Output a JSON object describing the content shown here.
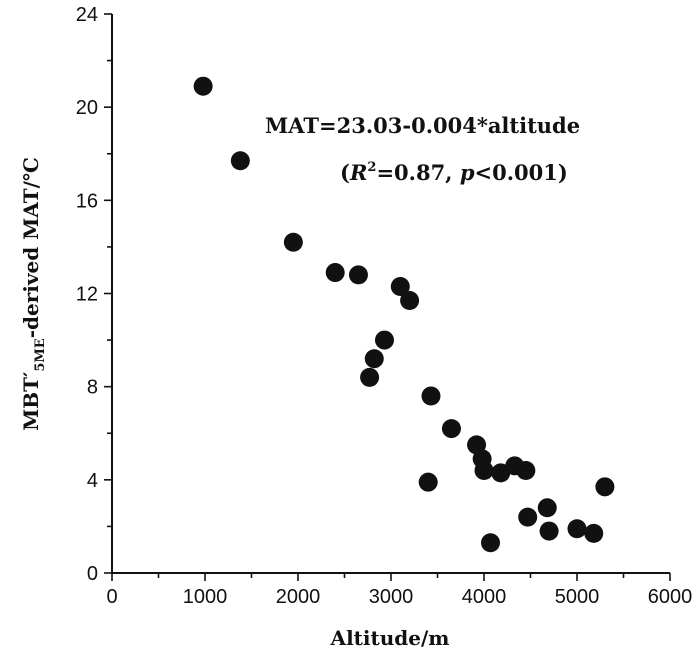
{
  "chart_data": {
    "type": "scatter",
    "xlabel": "Altitude/m",
    "ylabel": {
      "main": "MBT′",
      "sub": "5ME",
      "rest": "-derived MAT/℃"
    },
    "xlim": [
      0,
      6000
    ],
    "ylim": [
      0,
      24
    ],
    "xticks": [
      0,
      1000,
      2000,
      3000,
      4000,
      5000,
      6000
    ],
    "yticks": [
      0,
      4,
      8,
      12,
      16,
      20,
      24
    ],
    "grid": false,
    "annotations": {
      "equation": "MAT=23.03-0.004*altitude",
      "stats_open": "(",
      "r_symbol": "R",
      "r_sup": "2",
      "r_value": "=0.87, ",
      "p_symbol": "p",
      "p_value": "<0.001)"
    },
    "marker_color": "#111111",
    "points": [
      {
        "x": 980,
        "y": 20.9
      },
      {
        "x": 1380,
        "y": 17.7
      },
      {
        "x": 1950,
        "y": 14.2
      },
      {
        "x": 2400,
        "y": 12.9
      },
      {
        "x": 2650,
        "y": 12.8
      },
      {
        "x": 3100,
        "y": 12.3
      },
      {
        "x": 3200,
        "y": 11.7
      },
      {
        "x": 2930,
        "y": 10.0
      },
      {
        "x": 2820,
        "y": 9.2
      },
      {
        "x": 2770,
        "y": 8.4
      },
      {
        "x": 3430,
        "y": 7.6
      },
      {
        "x": 3400,
        "y": 3.9
      },
      {
        "x": 3650,
        "y": 6.2
      },
      {
        "x": 3920,
        "y": 5.5
      },
      {
        "x": 3980,
        "y": 4.9
      },
      {
        "x": 4000,
        "y": 4.4
      },
      {
        "x": 4180,
        "y": 4.3
      },
      {
        "x": 4330,
        "y": 4.6
      },
      {
        "x": 4450,
        "y": 4.4
      },
      {
        "x": 4470,
        "y": 2.4
      },
      {
        "x": 4070,
        "y": 1.3
      },
      {
        "x": 4680,
        "y": 2.8
      },
      {
        "x": 4700,
        "y": 1.8
      },
      {
        "x": 5000,
        "y": 1.9
      },
      {
        "x": 5180,
        "y": 1.7
      },
      {
        "x": 5300,
        "y": 3.7
      }
    ]
  }
}
